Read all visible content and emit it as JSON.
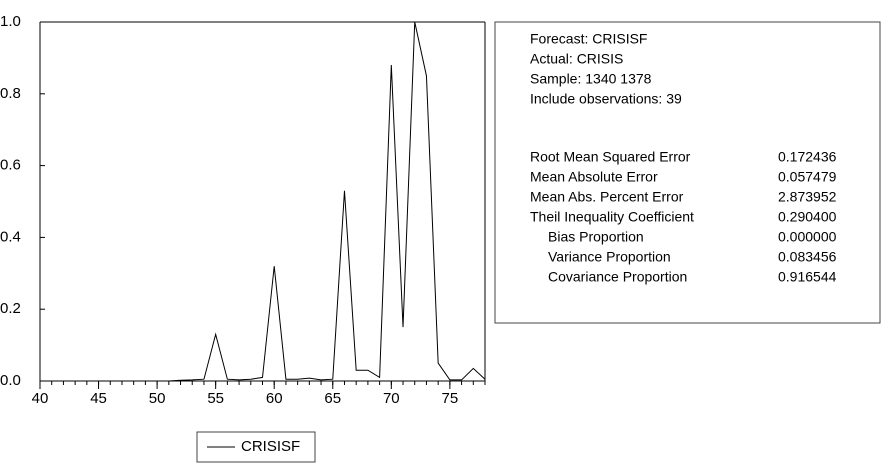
{
  "chart_data": {
    "type": "line",
    "x": [
      40,
      41,
      42,
      43,
      44,
      45,
      46,
      47,
      48,
      49,
      50,
      51,
      52,
      53,
      54,
      55,
      56,
      57,
      58,
      59,
      60,
      61,
      62,
      63,
      64,
      65,
      66,
      67,
      68,
      69,
      70,
      71,
      72,
      73,
      74,
      75,
      76,
      77,
      78
    ],
    "series": [
      {
        "name": "CRISISF",
        "color": "#000000",
        "values": [
          0,
          0,
          0,
          0,
          0,
          0,
          0,
          0,
          0,
          0,
          0,
          0,
          0.002,
          0.003,
          0.005,
          0.13,
          0.005,
          0.003,
          0.005,
          0.01,
          0.32,
          0.005,
          0.005,
          0.008,
          0.003,
          0.005,
          0.53,
          0.03,
          0.03,
          0.01,
          0.88,
          0.15,
          1.0,
          0.85,
          0.05,
          0.003,
          0.003,
          0.035,
          0.005
        ]
      }
    ],
    "xlim": [
      40,
      78
    ],
    "xticks": [
      40,
      45,
      50,
      55,
      60,
      65,
      70,
      75
    ],
    "ylim": [
      0,
      1
    ],
    "yticks": [
      {
        "value": 0,
        "label": "0.0"
      },
      0.2,
      0.4,
      0.6,
      0.8,
      {
        "value": 1,
        "label": "1.0"
      }
    ],
    "legend": "bottom"
  },
  "forecast_stats": {
    "header": [
      "Forecast: CRISISF",
      "Actual: CRISIS",
      "Sample: 1340 1378",
      "Include observations: 39"
    ],
    "rows": [
      [
        "Root Mean Squared Error",
        "0.172436"
      ],
      [
        "Mean Absolute Error",
        "0.057479"
      ],
      [
        "Mean Abs. Percent Error",
        "2.873952"
      ],
      [
        "Theil Inequality Coefficient",
        "0.290400"
      ],
      [
        "Bias Proportion",
        "0.000000"
      ],
      [
        "Variance Proportion",
        "0.083456"
      ],
      [
        "Covariance Proportion",
        "0.916544"
      ]
    ]
  }
}
